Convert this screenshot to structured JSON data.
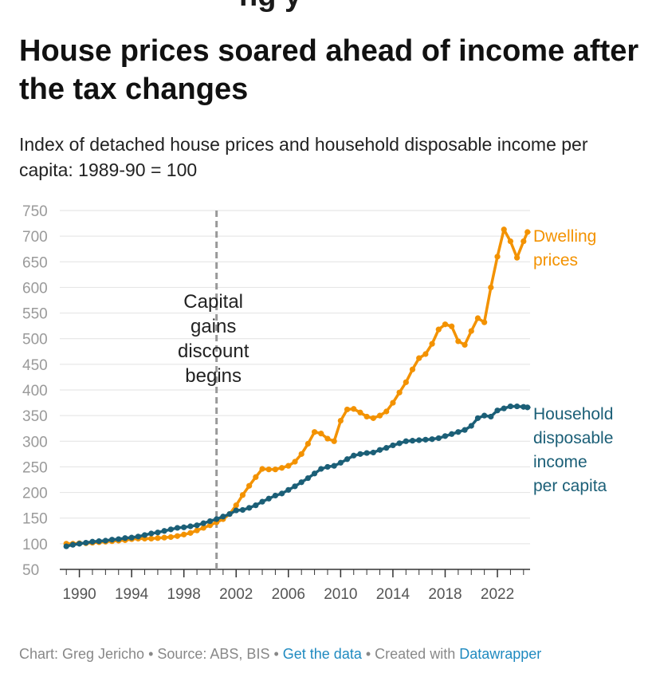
{
  "header": {
    "cut_title": "ng           y",
    "title": "House prices soared ahead of income after the tax changes",
    "subtitle": "Index of detached house prices and household disposable income per capita: 1989-90 = 100"
  },
  "footer": {
    "chart_by": "Chart: Greg Jericho",
    "sep1": " • ",
    "source": "Source: ABS, BIS",
    "sep2": " • ",
    "data_link": "Get the data",
    "sep3": " • ",
    "created": "Created with ",
    "dw_link": "Datawrapper"
  },
  "colors": {
    "dwelling": "#f39200",
    "income": "#1b5f77",
    "annotation_line": "#999999",
    "grid": "#e2e2e2"
  },
  "chart_data": {
    "type": "line",
    "title": "House prices soared ahead of income after the tax changes",
    "xlabel": "",
    "ylabel": "",
    "xlim": [
      1988.5,
      2024.5
    ],
    "ylim": [
      50,
      750
    ],
    "y_ticks": [
      "750",
      "700",
      "650",
      "600",
      "550",
      "500",
      "450",
      "400",
      "350",
      "300",
      "250",
      "200",
      "150",
      "100",
      "50"
    ],
    "x_ticks": [
      "1990",
      "1994",
      "1998",
      "2002",
      "2006",
      "2010",
      "2014",
      "2018",
      "2022"
    ],
    "grid": true,
    "annotation": {
      "x": 2000.5,
      "lines": [
        "Capital",
        "gains",
        "discount",
        "begins"
      ]
    },
    "series": [
      {
        "name": "Dwelling prices",
        "label_lines": [
          "Dwelling",
          "prices"
        ],
        "points": [
          [
            1989.0,
            100
          ],
          [
            1989.5,
            100
          ],
          [
            1990.0,
            101
          ],
          [
            1990.5,
            101
          ],
          [
            1991.0,
            102
          ],
          [
            1991.5,
            103
          ],
          [
            1992.0,
            104
          ],
          [
            1992.5,
            105
          ],
          [
            1993.0,
            106
          ],
          [
            1993.5,
            107
          ],
          [
            1994.0,
            109
          ],
          [
            1994.5,
            110
          ],
          [
            1995.0,
            110
          ],
          [
            1995.5,
            110
          ],
          [
            1996.0,
            111
          ],
          [
            1996.5,
            112
          ],
          [
            1997.0,
            113
          ],
          [
            1997.5,
            115
          ],
          [
            1998.0,
            118
          ],
          [
            1998.5,
            121
          ],
          [
            1999.0,
            126
          ],
          [
            1999.5,
            131
          ],
          [
            2000.0,
            136
          ],
          [
            2000.5,
            142
          ],
          [
            2001.0,
            148
          ],
          [
            2001.5,
            158
          ],
          [
            2002.0,
            175
          ],
          [
            2002.5,
            195
          ],
          [
            2003.0,
            213
          ],
          [
            2003.5,
            230
          ],
          [
            2004.0,
            246
          ],
          [
            2004.5,
            245
          ],
          [
            2005.0,
            245
          ],
          [
            2005.5,
            248
          ],
          [
            2006.0,
            252
          ],
          [
            2006.5,
            260
          ],
          [
            2007.0,
            275
          ],
          [
            2007.5,
            295
          ],
          [
            2008.0,
            318
          ],
          [
            2008.5,
            315
          ],
          [
            2009.0,
            305
          ],
          [
            2009.5,
            300
          ],
          [
            2010.0,
            340
          ],
          [
            2010.5,
            362
          ],
          [
            2011.0,
            363
          ],
          [
            2011.5,
            356
          ],
          [
            2012.0,
            348
          ],
          [
            2012.5,
            345
          ],
          [
            2013.0,
            350
          ],
          [
            2013.5,
            358
          ],
          [
            2014.0,
            375
          ],
          [
            2014.5,
            395
          ],
          [
            2015.0,
            415
          ],
          [
            2015.5,
            440
          ],
          [
            2016.0,
            462
          ],
          [
            2016.5,
            470
          ],
          [
            2017.0,
            490
          ],
          [
            2017.5,
            518
          ],
          [
            2018.0,
            528
          ],
          [
            2018.5,
            524
          ],
          [
            2019.0,
            495
          ],
          [
            2019.5,
            488
          ],
          [
            2020.0,
            515
          ],
          [
            2020.5,
            540
          ],
          [
            2021.0,
            532
          ],
          [
            2021.5,
            600
          ],
          [
            2022.0,
            660
          ],
          [
            2022.5,
            713
          ],
          [
            2023.0,
            690
          ],
          [
            2023.5,
            658
          ],
          [
            2024.0,
            690
          ],
          [
            2024.3,
            708
          ]
        ]
      },
      {
        "name": "Household disposable income per capita",
        "label_lines": [
          "Household",
          "disposable",
          "income",
          "per capita"
        ],
        "points": [
          [
            1989.0,
            95
          ],
          [
            1989.5,
            98
          ],
          [
            1990.0,
            100
          ],
          [
            1990.5,
            102
          ],
          [
            1991.0,
            104
          ],
          [
            1991.5,
            105
          ],
          [
            1992.0,
            106
          ],
          [
            1992.5,
            108
          ],
          [
            1993.0,
            109
          ],
          [
            1993.5,
            111
          ],
          [
            1994.0,
            112
          ],
          [
            1994.5,
            114
          ],
          [
            1995.0,
            117
          ],
          [
            1995.5,
            120
          ],
          [
            1996.0,
            122
          ],
          [
            1996.5,
            125
          ],
          [
            1997.0,
            128
          ],
          [
            1997.5,
            131
          ],
          [
            1998.0,
            132
          ],
          [
            1998.5,
            134
          ],
          [
            1999.0,
            136
          ],
          [
            1999.5,
            140
          ],
          [
            2000.0,
            144
          ],
          [
            2000.5,
            148
          ],
          [
            2001.0,
            153
          ],
          [
            2001.5,
            158
          ],
          [
            2002.0,
            165
          ],
          [
            2002.5,
            166
          ],
          [
            2003.0,
            170
          ],
          [
            2003.5,
            175
          ],
          [
            2004.0,
            182
          ],
          [
            2004.5,
            188
          ],
          [
            2005.0,
            194
          ],
          [
            2005.5,
            198
          ],
          [
            2006.0,
            205
          ],
          [
            2006.5,
            212
          ],
          [
            2007.0,
            220
          ],
          [
            2007.5,
            228
          ],
          [
            2008.0,
            237
          ],
          [
            2008.5,
            246
          ],
          [
            2009.0,
            250
          ],
          [
            2009.5,
            252
          ],
          [
            2010.0,
            258
          ],
          [
            2010.5,
            265
          ],
          [
            2011.0,
            272
          ],
          [
            2011.5,
            275
          ],
          [
            2012.0,
            277
          ],
          [
            2012.5,
            278
          ],
          [
            2013.0,
            283
          ],
          [
            2013.5,
            287
          ],
          [
            2014.0,
            292
          ],
          [
            2014.5,
            296
          ],
          [
            2015.0,
            300
          ],
          [
            2015.5,
            301
          ],
          [
            2016.0,
            302
          ],
          [
            2016.5,
            303
          ],
          [
            2017.0,
            304
          ],
          [
            2017.5,
            306
          ],
          [
            2018.0,
            310
          ],
          [
            2018.5,
            314
          ],
          [
            2019.0,
            318
          ],
          [
            2019.5,
            322
          ],
          [
            2020.0,
            330
          ],
          [
            2020.5,
            345
          ],
          [
            2021.0,
            350
          ],
          [
            2021.5,
            348
          ],
          [
            2022.0,
            360
          ],
          [
            2022.5,
            364
          ],
          [
            2023.0,
            368
          ],
          [
            2023.5,
            368
          ],
          [
            2024.0,
            367
          ],
          [
            2024.3,
            366
          ]
        ]
      }
    ]
  }
}
